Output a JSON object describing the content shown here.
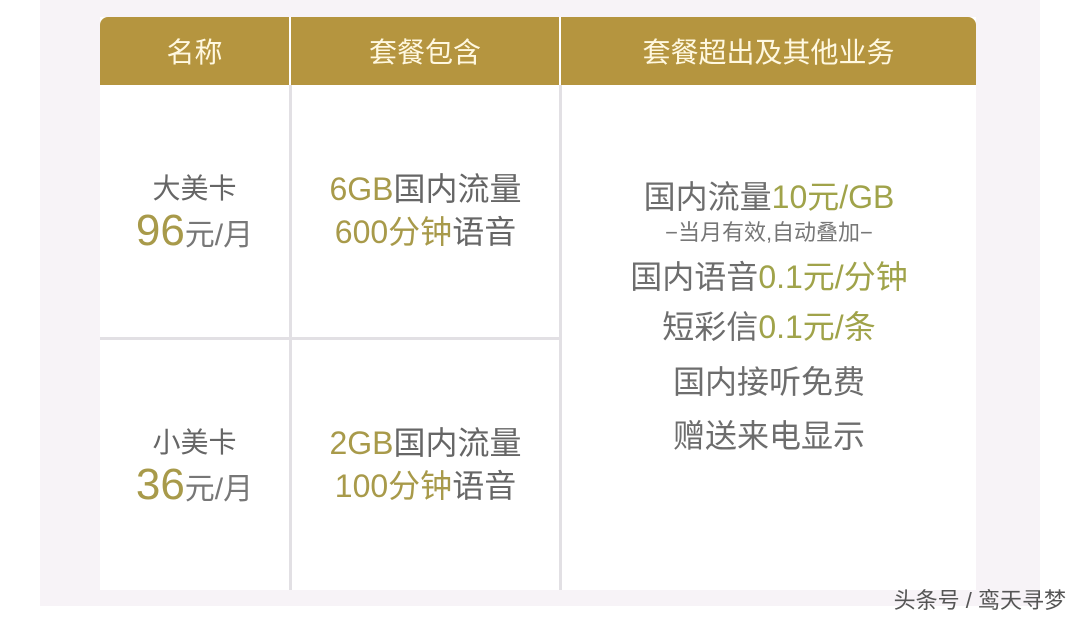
{
  "headers": [
    "名称",
    "套餐包含",
    "套餐超出及其他业务"
  ],
  "plans": [
    {
      "name": "大美卡",
      "price": "96",
      "unit": "元/月",
      "data_amt": "6GB",
      "data_label": "国内流量",
      "voice_amt": "600分钟",
      "voice_label": "语音"
    },
    {
      "name": "小美卡",
      "price": "36",
      "unit": "元/月",
      "data_amt": "2GB",
      "data_label": "国内流量",
      "voice_amt": "100分钟",
      "voice_label": "语音"
    }
  ],
  "extras": {
    "data_label": "国内流量",
    "data_price": "10元/GB",
    "data_note": "−当月有效,自动叠加−",
    "voice_label": "国内语音",
    "voice_price": "0.1元/分钟",
    "sms_label": "短彩信",
    "sms_price": "0.1元/条",
    "incoming": "国内接听免费",
    "caller_id": "赠送来电显示"
  },
  "watermark": "头条号 / 鸾天寻梦",
  "colors": {
    "header": "#b5953f",
    "accent": "#a89a4a",
    "text": "#666666"
  }
}
